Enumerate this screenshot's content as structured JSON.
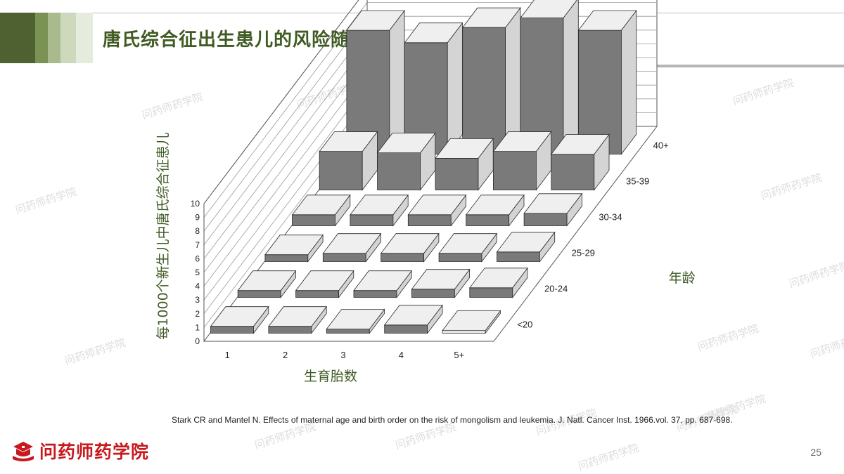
{
  "slide": {
    "title": "唐氏综合征出生患儿的风险随生育胎数增加而增加？",
    "citation": "Stark CR and Mantel N. Effects of maternal age and birth order on the risk of mongolism and leukemia. J. Natl. Cancer Inst. 1966.vol. 37, pp. 687-698.",
    "page_number": "25",
    "logo_text": "问药师药学院",
    "watermark": "问药师药学院",
    "header_colors": [
      "#4f6131",
      "#7a9253",
      "#a9bb8d",
      "#cdd8bd",
      "#e6ecdd"
    ],
    "accent_color": "#3f5a22"
  },
  "chart_data": {
    "type": "bar",
    "subtype": "3d-bar",
    "xlabel": "生育胎数",
    "ylabel": "每1000个新生儿中唐氏综合征患儿",
    "zlabel": "年龄",
    "categories": [
      "1",
      "2",
      "3",
      "4",
      "5+"
    ],
    "depth_categories": [
      "<20",
      "20-24",
      "25-29",
      "30-34",
      "35-39",
      "40+"
    ],
    "ylim": [
      0,
      10
    ],
    "yticks": [
      0,
      1,
      2,
      3,
      4,
      5,
      6,
      7,
      8,
      9,
      10
    ],
    "series": [
      {
        "name": "<20",
        "values": [
          0.5,
          0.5,
          0.3,
          0.6,
          0.2
        ]
      },
      {
        "name": "20-24",
        "values": [
          0.5,
          0.5,
          0.5,
          0.6,
          0.7
        ]
      },
      {
        "name": "25-29",
        "values": [
          0.5,
          0.6,
          0.6,
          0.6,
          0.7
        ]
      },
      {
        "name": "30-34",
        "values": [
          0.8,
          0.8,
          0.8,
          0.8,
          0.9
        ]
      },
      {
        "name": "35-39",
        "values": [
          2.8,
          2.7,
          2.3,
          2.8,
          2.6
        ]
      },
      {
        "name": "40+",
        "values": [
          9.0,
          8.1,
          9.2,
          9.9,
          9.0
        ]
      }
    ],
    "grid": true
  }
}
